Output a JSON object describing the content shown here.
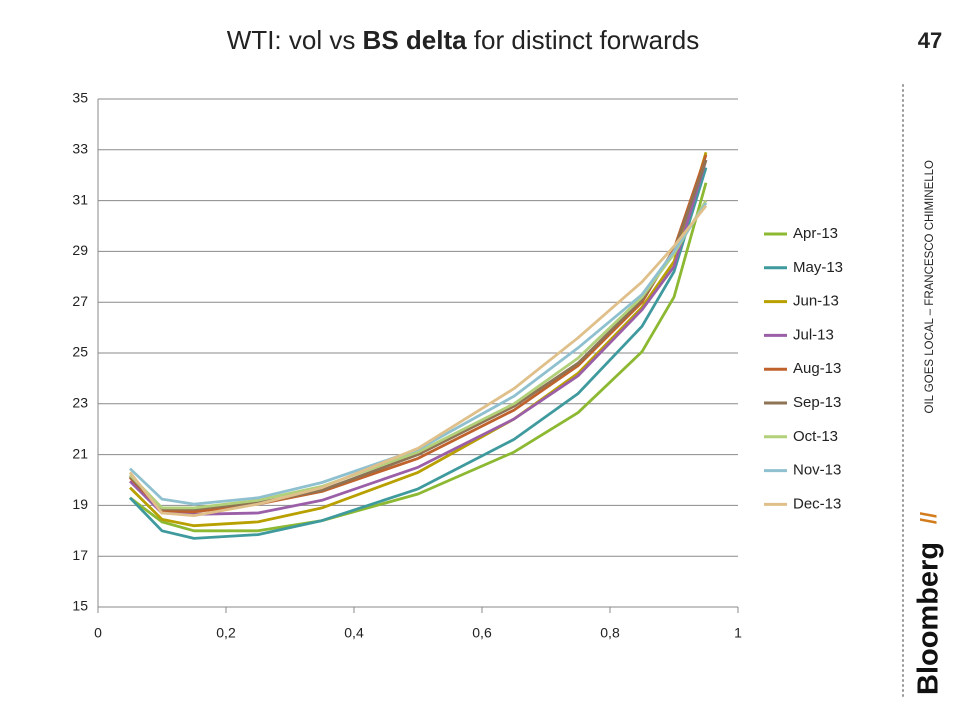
{
  "slide": {
    "page_number": 47,
    "footer": "OIL GOES LOCAL – FRANCESCO CHIMINELLO",
    "brand": "Bloomberg",
    "brand_mark": "//"
  },
  "chart_data": {
    "type": "line",
    "title": [
      "WTI: vol vs ",
      "BS delta",
      " for distinct forwards"
    ],
    "title_bold_part": 1,
    "x": [
      0.05,
      0.1,
      0.15,
      0.25,
      0.35,
      0.5,
      0.65,
      0.75,
      0.85,
      0.9,
      0.95
    ],
    "series": [
      {
        "name": "Apr-13",
        "color": "#8cb832",
        "values": [
          19.3,
          18.35,
          18.0,
          18.0,
          18.4,
          19.45,
          21.1,
          22.65,
          25.05,
          27.2,
          31.7
        ]
      },
      {
        "name": "May-13",
        "color": "#3f9a9e",
        "values": [
          19.3,
          18.0,
          17.7,
          17.85,
          18.4,
          19.65,
          21.6,
          23.4,
          26.05,
          28.2,
          32.3
        ]
      },
      {
        "name": "Jun-13",
        "color": "#b8a000",
        "values": [
          19.7,
          18.45,
          18.2,
          18.35,
          18.9,
          20.3,
          22.4,
          24.2,
          26.8,
          28.6,
          32.9
        ]
      },
      {
        "name": "Jul-13",
        "color": "#9b5fa8",
        "values": [
          19.95,
          18.7,
          18.65,
          18.7,
          19.2,
          20.5,
          22.4,
          24.1,
          26.7,
          28.4,
          32.6
        ]
      },
      {
        "name": "Aug-13",
        "color": "#c0622c",
        "values": [
          20.1,
          18.8,
          18.75,
          19.05,
          19.55,
          20.85,
          22.75,
          24.5,
          27.0,
          29.1,
          32.8
        ]
      },
      {
        "name": "Sep-13",
        "color": "#8e7355",
        "values": [
          20.15,
          18.85,
          18.85,
          19.1,
          19.6,
          21.0,
          22.9,
          24.6,
          27.1,
          29.0,
          32.6
        ]
      },
      {
        "name": "Oct-13",
        "color": "#b2d07a",
        "values": [
          20.2,
          18.9,
          18.9,
          19.2,
          19.75,
          21.1,
          23.0,
          24.8,
          27.2,
          28.9,
          31.0
        ]
      },
      {
        "name": "Nov-13",
        "color": "#8fc0cf",
        "values": [
          20.45,
          19.25,
          19.05,
          19.3,
          19.9,
          21.2,
          23.3,
          25.2,
          27.3,
          29.0,
          30.9
        ]
      },
      {
        "name": "Dec-13",
        "color": "#e0c08a",
        "values": [
          20.3,
          18.7,
          18.6,
          19.05,
          19.7,
          21.25,
          23.6,
          25.6,
          27.8,
          29.2,
          30.8
        ]
      }
    ],
    "xlim": [
      0,
      1
    ],
    "xticks": [
      0,
      {
        "value": 0.2,
        "label": "0,2"
      },
      {
        "value": 0.4,
        "label": "0,4"
      },
      {
        "value": 0.6,
        "label": "0,6"
      },
      {
        "value": 0.8,
        "label": "0,8"
      },
      1
    ],
    "ylim": [
      15,
      35
    ],
    "yticks": [
      15,
      17,
      19,
      21,
      23,
      25,
      27,
      29,
      31,
      33,
      35
    ],
    "grid": true,
    "legend": "right"
  }
}
